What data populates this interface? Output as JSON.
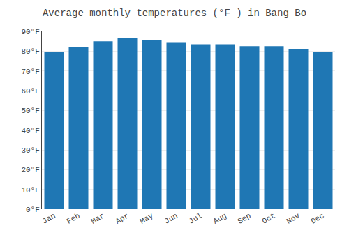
{
  "chart_data": {
    "type": "bar",
    "title": "Average monthly temperatures (°F ) in Bang Bo",
    "categories": [
      "Jan",
      "Feb",
      "Mar",
      "Apr",
      "May",
      "Jun",
      "Jul",
      "Aug",
      "Sep",
      "Oct",
      "Nov",
      "Dec"
    ],
    "values": [
      79.5,
      82.0,
      85.0,
      86.5,
      85.5,
      84.5,
      83.5,
      83.5,
      82.5,
      82.5,
      81.0,
      79.5
    ],
    "ylim": [
      0,
      90
    ],
    "yticks": [
      {
        "value": 0,
        "label": "0°F"
      },
      {
        "value": 10,
        "label": "10°F"
      },
      {
        "value": 20,
        "label": "20°F"
      },
      {
        "value": 30,
        "label": "30°F"
      },
      {
        "value": 40,
        "label": "40°F"
      },
      {
        "value": 50,
        "label": "50°F"
      },
      {
        "value": 60,
        "label": "60°F"
      },
      {
        "value": 70,
        "label": "70°F"
      },
      {
        "value": 80,
        "label": "80°F"
      },
      {
        "value": 90,
        "label": "90°F"
      }
    ],
    "grid": true
  }
}
